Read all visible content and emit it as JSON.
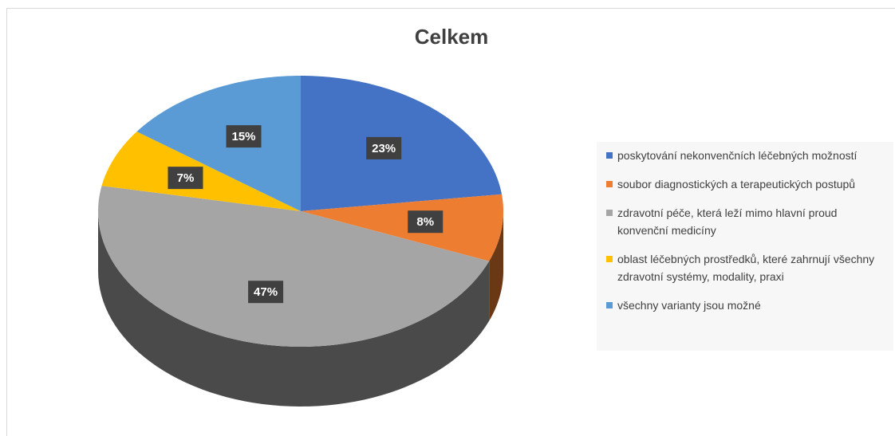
{
  "chart_data": {
    "type": "pie",
    "title": "Celkem",
    "categories": [
      "poskytování nekonvenčních léčebných možností",
      "soubor diagnostických a terapeutických postupů",
      "zdravotní péče, která leží mimo hlavní proud konvenční medicíny",
      "oblast léčebných prostředků, které zahrnují všechny zdravotní systémy, modality, praxi",
      "všechny varianty jsou možné"
    ],
    "values": [
      23,
      8,
      47,
      7,
      15
    ],
    "value_labels": [
      "23%",
      "8%",
      "47%",
      "7%",
      "15%"
    ],
    "colors": [
      "#4472c4",
      "#ed7d31",
      "#a5a5a5",
      "#ffc000",
      "#5b9bd5"
    ],
    "legend": "right"
  }
}
